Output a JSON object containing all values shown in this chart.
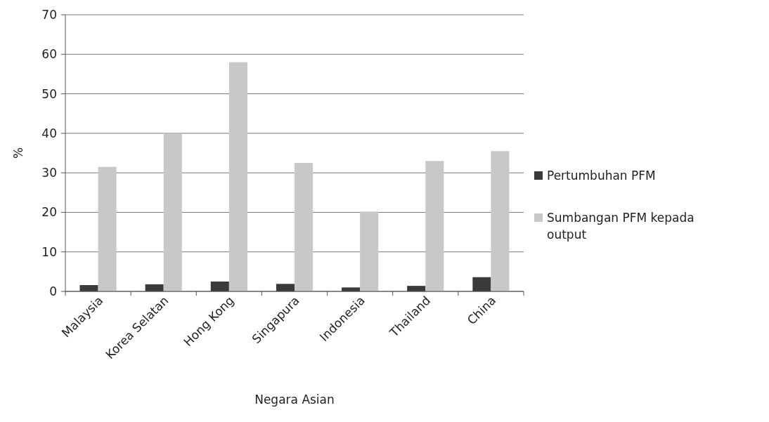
{
  "chart_data": {
    "type": "bar",
    "xlabel": "Negara Asian",
    "ylabel": "%",
    "categories": [
      "Malaysia",
      "Korea Selatan",
      "Hong Kong",
      "Singapura",
      "Indonesia",
      "Thailand",
      "China"
    ],
    "series": [
      {
        "name": "Pertumbuhan PFM",
        "color": "#3a3a3a",
        "values": [
          1.6,
          1.8,
          2.5,
          1.9,
          1.0,
          1.4,
          3.6
        ]
      },
      {
        "name": "Sumbangan PFM kepada output",
        "color": "#c8c8c8",
        "values": [
          31.5,
          40,
          58,
          32.5,
          20.2,
          33,
          35.5
        ]
      }
    ],
    "ylim": [
      0,
      70
    ],
    "yticks": [
      0,
      10,
      20,
      30,
      40,
      50,
      60,
      70
    ],
    "grid": "y",
    "legend": "right"
  }
}
